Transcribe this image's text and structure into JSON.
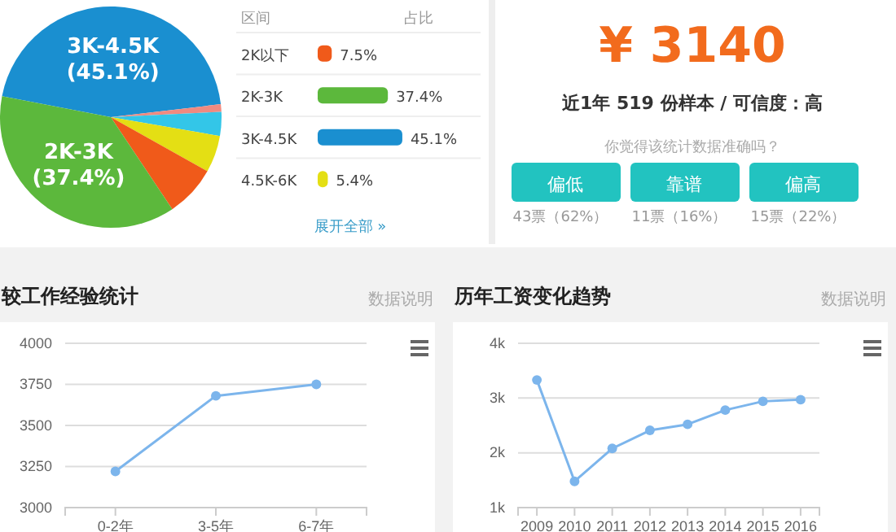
{
  "chart_data": [
    {
      "type": "pie",
      "categories": [
        "3K-4.5K",
        null,
        null,
        null,
        null,
        "2K-3K"
      ],
      "values": [
        45.1,
        1.1,
        3.5,
        5.4,
        7.5,
        37.4
      ],
      "value_labels": [
        "(45.1%)",
        null,
        null,
        null,
        null,
        "(37.4%)"
      ],
      "colors": [
        "#1a8fd0",
        "#f08a80",
        "#33c6e8",
        "#e4df14",
        "#f05a1a",
        "#5cb83c"
      ]
    },
    {
      "type": "bar",
      "orientation": "horizontal",
      "categories": [
        "2K以下",
        "2K-3K",
        "3K-4.5K",
        "4.5K-6K"
      ],
      "values": [
        7.5,
        37.4,
        45.1,
        5.4
      ],
      "value_labels": [
        "7.5%",
        "37.4%",
        "45.1%",
        "5.4%"
      ],
      "colors": [
        "#f05a1a",
        "#5cb83c",
        "#1a8fd0",
        "#e4df14"
      ],
      "xlim": [
        0,
        46
      ],
      "annotations": [
        "区间",
        "占比",
        "展开全部 »"
      ]
    },
    {
      "type": "other",
      "title": "¥ 3140",
      "subtitle": "近1年 519 份样本 / 可信度：高",
      "annotations": [
        "你觉得该统计数据准确吗？",
        "偏低",
        "靠谱",
        "偏高",
        "43票（62%）",
        "11票（16%）",
        "15票（22%）"
      ]
    },
    {
      "type": "line",
      "title": "较工作经验统计",
      "annotations": [
        "数据说明"
      ],
      "categories": [
        "0-2年",
        "3-5年",
        "6-7年"
      ],
      "series": [
        {
          "color": "#7cb5ec",
          "values": [
            3220,
            3680,
            3750
          ]
        }
      ],
      "ylim": [
        3000,
        4000
      ],
      "yticks": [
        3000,
        3250,
        3500,
        3750,
        4000
      ],
      "grid": "y",
      "marker": "circle"
    },
    {
      "type": "line",
      "title": "历年工资变化趋势",
      "annotations": [
        "数据说明"
      ],
      "categories": [
        "2009",
        "2010",
        "2011",
        "2012",
        "2013",
        "2014",
        "2015",
        "2016"
      ],
      "series": [
        {
          "color": "#7cb5ec",
          "values": [
            3330,
            1480,
            2080,
            2410,
            2520,
            2780,
            2940,
            2970
          ]
        }
      ],
      "ylim": [
        1000,
        4000
      ],
      "yticks": [
        {
          "value": 1000,
          "label": "1k"
        },
        {
          "value": 2000,
          "label": "2k"
        },
        {
          "value": 3000,
          "label": "3k"
        },
        {
          "value": 4000,
          "label": "4k"
        }
      ],
      "grid": "y",
      "marker": "circle"
    }
  ]
}
